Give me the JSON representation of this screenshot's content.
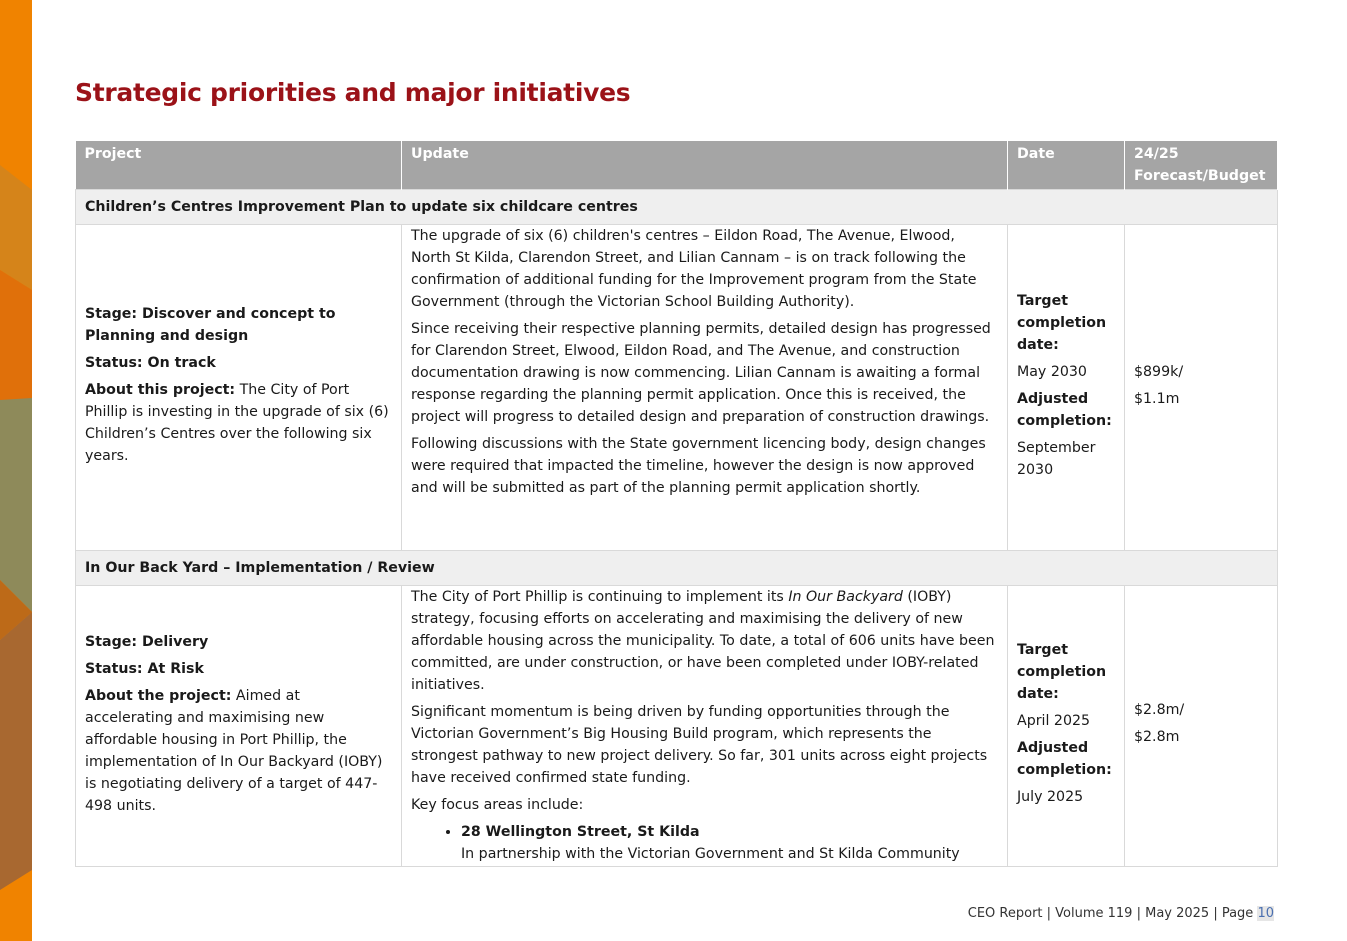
{
  "title": "Strategic priorities and major initiatives",
  "columns": [
    "Project",
    "Update",
    "Date",
    "24/25 Forecast/Budget"
  ],
  "sections": [
    {
      "heading": "Children’s Centres Improvement Plan to update six childcare centres",
      "stage": "Stage: Discover and concept to Planning and design",
      "status": "Status: On track",
      "about_label": "About this project:",
      "about": "The City of Port Phillip is investing in the upgrade of six (6) Children’s Centres over the following six years.",
      "updates": [
        "The upgrade of six (6) children's centres – Eildon Road, The Avenue, Elwood, North St Kilda, Clarendon Street, and Lilian Cannam – is on track following the confirmation of additional funding for the Improvement program from the State Government (through the Victorian School Building Authority).",
        "Since receiving their respective planning permits, detailed design has progressed for Clarendon Street, Elwood, Eildon Road, and The Avenue, and construction documentation drawing is now commencing. Lilian Cannam is awaiting a formal response regarding the planning permit application. Once this is received, the project will progress to detailed design and preparation of construction drawings.",
        "Following discussions with the State government licencing body, design changes were required that impacted the timeline, however the design is now approved and will be submitted as part of the planning permit application shortly."
      ],
      "target_label": "Target completion date:",
      "target": "May 2030",
      "adjusted_label": "Adjusted completion:",
      "adjusted": "September 2030",
      "forecast": "$899k/",
      "budget": "$1.1m"
    },
    {
      "heading": "In Our Back Yard – Implementation / Review",
      "stage": "Stage: Delivery",
      "status": "Status: At Risk",
      "about_label": "About the project:",
      "about": "Aimed at accelerating and maximising new affordable housing in Port Phillip, the implementation of In Our Backyard (IOBY) is negotiating delivery of a target of 447-498 units.",
      "update_pre": "The City of Port Phillip is continuing to implement its ",
      "update_em": "In Our Backyard",
      "update_post": " (IOBY) strategy, focusing efforts on accelerating and maximising the delivery of new affordable housing across the municipality. To date, a total of 606 units have been committed, are under construction, or have been completed under IOBY-related initiatives.",
      "updates": [
        "Significant momentum is being driven by funding opportunities through the Victorian Government’s Big Housing Build program, which represents the strongest pathway to new project delivery. So far, 301 units across eight projects have received confirmed state funding.",
        "Key focus areas include:"
      ],
      "bullet_title": "28 Wellington Street, St Kilda",
      "bullet_text": "In partnership with the Victorian Government and St Kilda Community",
      "target_label": "Target completion date:",
      "target": "April 2025",
      "adjusted_label": "Adjusted completion:",
      "adjusted": "July 2025",
      "forecast": "$2.8m/",
      "budget": "$2.8m"
    }
  ],
  "footer": {
    "text": "CEO Report | Volume 119 | May 2025 | Page ",
    "page": "10"
  },
  "colors": {
    "title": "#9b1218",
    "header": "#a5a5a5",
    "section": "#efefef"
  }
}
